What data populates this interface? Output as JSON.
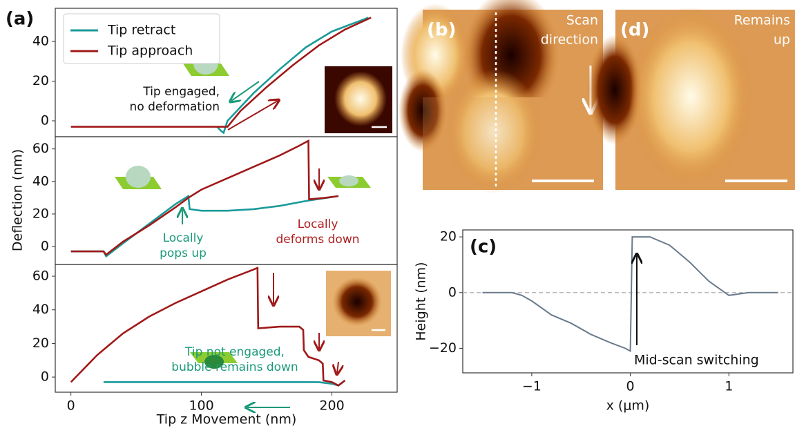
{
  "figure": {
    "a_label": "(a)",
    "c_label": "(c)",
    "a_ylabel": "Deflection (nm)",
    "a_xlabel": "Tip z Movement (nm)"
  },
  "images": {
    "b": {
      "label": "(b)",
      "annotation": [
        "Scan",
        "direction"
      ]
    },
    "d": {
      "label": "(d)",
      "annotation": [
        "Remains",
        "up"
      ]
    }
  },
  "chart_data": [
    {
      "type": "line",
      "xlim": [
        -12,
        250
      ],
      "ylim": [
        -8,
        56.7
      ],
      "yticks": [
        0,
        20,
        40
      ],
      "series": [
        {
          "name": "Tip retract",
          "color": "#1a9a9a",
          "x": [
            112,
            115,
            117,
            120,
            140,
            160,
            180,
            200,
            220,
            228
          ],
          "values": [
            -3,
            -5,
            -6,
            0,
            14,
            26,
            37,
            45,
            50,
            52
          ]
        },
        {
          "name": "Tip approach",
          "color": "#a01818",
          "x": [
            0,
            60,
            120,
            130,
            150,
            170,
            190,
            210,
            230
          ],
          "values": [
            -3,
            -3,
            -3,
            5,
            17,
            28,
            38,
            46,
            52
          ]
        }
      ],
      "annotations": [
        {
          "lines": [
            "Tip engaged,",
            "no deformation"
          ],
          "color": "#111111"
        }
      ]
    },
    {
      "type": "line",
      "xlim": [
        -12,
        250
      ],
      "ylim": [
        -11,
        67.5
      ],
      "yticks": [
        0,
        20,
        40,
        60
      ],
      "series": [
        {
          "color": "#1a9a9a",
          "x": [
            0,
            25,
            27,
            40,
            60,
            80,
            90,
            91,
            100,
            120,
            140,
            160,
            180,
            205
          ],
          "values": [
            -3,
            -3,
            -6,
            2,
            14,
            26,
            31,
            23,
            22,
            22,
            23,
            25,
            28,
            31
          ]
        },
        {
          "color": "#a01818",
          "x": [
            0,
            25,
            27,
            40,
            60,
            80,
            90,
            100,
            120,
            140,
            160,
            175,
            182,
            182.5,
            195,
            205
          ],
          "values": [
            -3,
            -3,
            -5,
            3,
            13,
            24,
            30,
            35,
            42,
            49,
            56,
            62,
            65,
            29,
            30,
            31
          ]
        }
      ],
      "annotations": [
        {
          "lines": [
            "Locally",
            "pops up"
          ],
          "color": "#1a9a7a"
        },
        {
          "lines": [
            "Locally",
            "deforms down"
          ],
          "color": "#b02020"
        }
      ]
    },
    {
      "type": "line",
      "xlim": [
        -12,
        250
      ],
      "ylim": [
        -9,
        67
      ],
      "yticks": [
        0,
        20,
        40,
        60
      ],
      "xticks": [
        0,
        100,
        200
      ],
      "series": [
        {
          "color": "#1a9a9a",
          "x": [
            25,
            100,
            190,
            200,
            205,
            210
          ],
          "values": [
            -3,
            -3,
            -3,
            -4,
            -5,
            -2
          ]
        },
        {
          "color": "#a01818",
          "x": [
            0,
            20,
            40,
            60,
            80,
            100,
            120,
            140,
            143,
            143.5,
            160,
            175,
            178,
            178.5,
            182,
            190,
            193,
            193.5,
            200,
            205,
            210
          ],
          "values": [
            -3,
            13,
            26,
            36,
            44,
            51,
            58,
            64,
            65,
            29,
            30,
            30,
            28,
            16,
            12,
            10,
            8,
            -2,
            -3,
            -5,
            -2
          ]
        }
      ],
      "annotations": [
        {
          "lines": [
            "Tip not engaged,",
            "bubble remains down"
          ],
          "color": "#1a9a7a"
        }
      ]
    },
    {
      "type": "line",
      "xlim": [
        -1.7,
        1.65
      ],
      "ylim": [
        -28.8,
        22.5
      ],
      "xlabel": "x (μm)",
      "ylabel": "Height (nm)",
      "hline": 0,
      "xticks": [
        {
          "value": -1,
          "label": "−1"
        },
        0,
        1
      ],
      "yticks": [
        {
          "value": -20,
          "label": "−20"
        },
        0,
        20
      ],
      "series": [
        {
          "color": "#6a7a8c",
          "x": [
            -1.5,
            -1.3,
            -1.2,
            -1.1,
            -1.0,
            -0.8,
            -0.6,
            -0.4,
            -0.2,
            -0.05,
            0,
            0.02,
            0.2,
            0.4,
            0.6,
            0.8,
            1.0,
            1.2,
            1.5
          ],
          "values": [
            0,
            0,
            0,
            -1,
            -3,
            -8,
            -11,
            -15,
            -18,
            -20,
            -21,
            20,
            20,
            17,
            11,
            4,
            -1,
            0,
            0
          ]
        }
      ],
      "annotations": [
        {
          "lines": [
            "Mid-scan switching"
          ],
          "color": "#111111"
        }
      ]
    }
  ]
}
